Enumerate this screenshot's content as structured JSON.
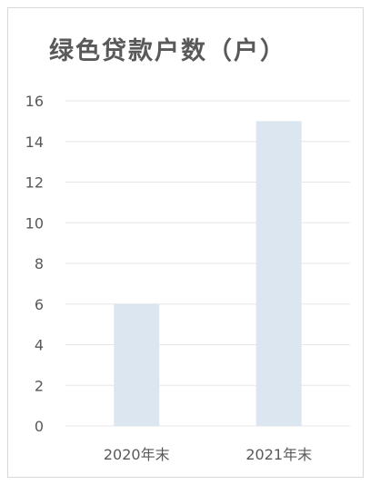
{
  "chart_data": {
    "type": "bar",
    "title": "绿色贷款户数（户）",
    "categories": [
      "2020年末",
      "2021年末"
    ],
    "values": [
      6,
      15
    ],
    "ylim": [
      0,
      16
    ],
    "yticks": [
      "0",
      "2",
      "4",
      "6",
      "8",
      "10",
      "12",
      "14",
      "16"
    ],
    "grid": true,
    "bar_color": "#dce6f1",
    "grid_color": "#e6e6e6",
    "text_color": "#595959"
  }
}
